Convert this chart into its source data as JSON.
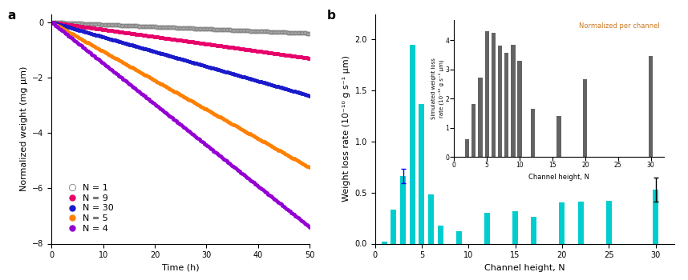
{
  "panel_a": {
    "series": [
      {
        "label": "N = 1",
        "color": "#808080",
        "slope": -0.008,
        "marker_size": 3.5,
        "open": true
      },
      {
        "label": "N = 9",
        "color": "#e8006a",
        "slope": -0.026,
        "marker_size": 3.5,
        "open": false
      },
      {
        "label": "N = 30",
        "color": "#1a1acc",
        "slope": -0.053,
        "marker_size": 3.5,
        "open": false
      },
      {
        "label": "N = 5",
        "color": "#ff8000",
        "slope": -0.105,
        "marker_size": 3.5,
        "open": false
      },
      {
        "label": "N = 4",
        "color": "#9400d3",
        "slope": -0.148,
        "marker_size": 3.5,
        "open": false
      }
    ],
    "xlabel": "Time (h)",
    "ylabel": "Normalized weight (mg μm)",
    "xlim": [
      0,
      50
    ],
    "ylim": [
      -8,
      0.3
    ],
    "yticks": [
      0,
      -2,
      -4,
      -6,
      -8
    ],
    "xticks": [
      0,
      10,
      20,
      30,
      40,
      50
    ],
    "n_points": 200
  },
  "panel_b": {
    "bar_x": [
      1,
      2,
      3,
      4,
      5,
      6,
      7,
      9,
      12,
      15,
      17,
      20,
      22,
      25,
      30
    ],
    "bar_y": [
      0.02,
      0.33,
      0.66,
      1.95,
      1.37,
      0.48,
      0.18,
      0.12,
      0.3,
      0.32,
      0.26,
      0.4,
      0.41,
      0.42,
      0.53
    ],
    "bar_yerr": [
      0.0,
      0.0,
      0.07,
      0.0,
      0.0,
      0.0,
      0.0,
      0.0,
      0.0,
      0.0,
      0.0,
      0.0,
      0.0,
      0.0,
      0.12
    ],
    "bar_err_colors": [
      "red",
      "none",
      "blue",
      "none",
      "none",
      "none",
      "none",
      "none",
      "none",
      "none",
      "none",
      "none",
      "none",
      "none",
      "black"
    ],
    "bar_color": "#00cdcd",
    "xlabel": "Channel height, N",
    "ylabel": "Weight loss rate (10⁻¹⁰ g s⁻¹ μm)",
    "xlim": [
      0,
      32
    ],
    "ylim": [
      0,
      2.25
    ],
    "yticks": [
      0.0,
      0.5,
      1.0,
      1.5,
      2.0
    ],
    "xticks": [
      0,
      5,
      10,
      15,
      20,
      25,
      30
    ]
  },
  "inset": {
    "bar_x": [
      2,
      3,
      4,
      5,
      6,
      7,
      8,
      9,
      10,
      12,
      16,
      20,
      30
    ],
    "bar_y": [
      0.6,
      1.8,
      2.7,
      4.3,
      4.25,
      3.8,
      3.55,
      3.85,
      3.3,
      1.65,
      1.4,
      2.65,
      3.45
    ],
    "bar_color": "#636363",
    "xlabel": "Channel height, N",
    "ylabel": "Simulated weight loss\nrate (10⁻¹⁰ g s⁻¹ μm)",
    "title": "Normalized per channel",
    "title_color": "#cc7722",
    "xlim": [
      0,
      32
    ],
    "ylim": [
      0,
      4.7
    ],
    "yticks": [
      0,
      1,
      2,
      3,
      4
    ],
    "xticks": [
      0,
      5,
      10,
      15,
      20,
      25,
      30
    ]
  },
  "bg_color": "#ffffff",
  "label_fontsize": 8,
  "tick_fontsize": 7,
  "legend_fontsize": 8
}
